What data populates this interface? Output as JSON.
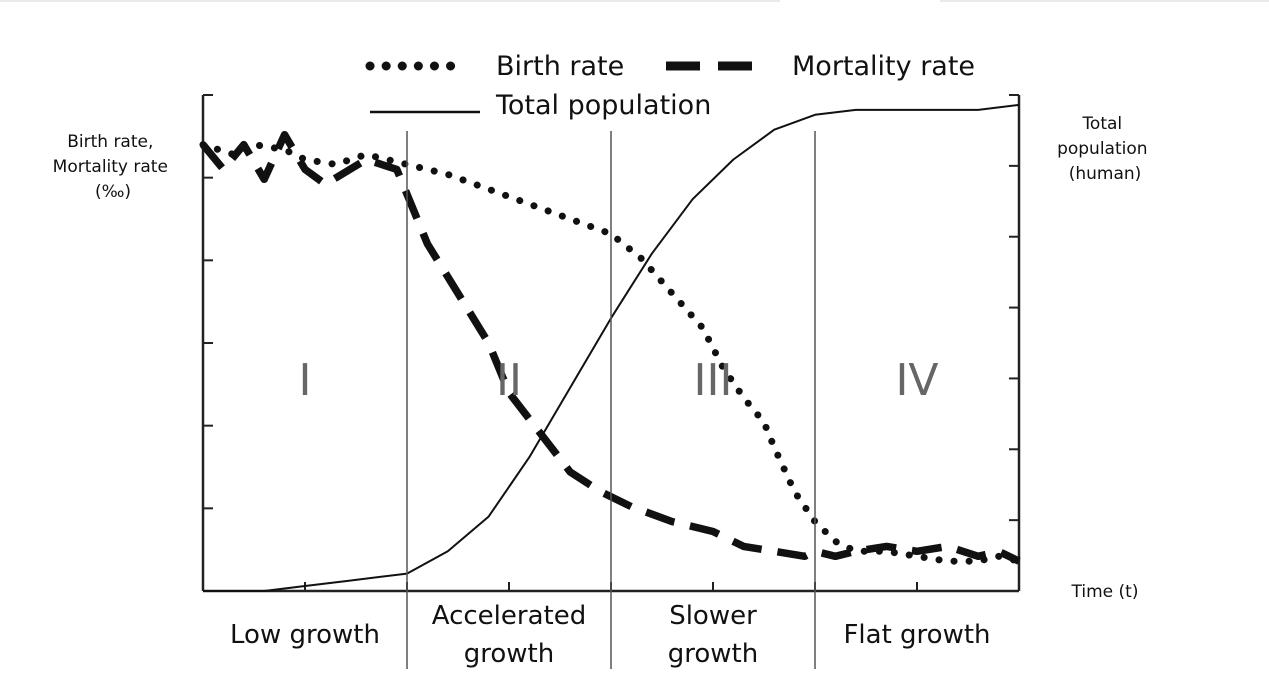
{
  "legend": {
    "birth": "Birth rate",
    "mortality": "Mortality rate",
    "total": "Total population"
  },
  "axes": {
    "left_label": [
      "Birth rate,",
      "Mortality rate",
      "(‰)"
    ],
    "right_label": [
      "Total",
      "population",
      "(human)"
    ],
    "x_label": "Time (t)"
  },
  "stages": [
    {
      "numeral": "I",
      "name": [
        "Low growth"
      ]
    },
    {
      "numeral": "II",
      "name": [
        "Accelerated",
        "growth"
      ]
    },
    {
      "numeral": "III",
      "name": [
        "Slower",
        "growth"
      ]
    },
    {
      "numeral": "IV",
      "name": [
        "Flat growth"
      ]
    }
  ],
  "chart_data": {
    "type": "line",
    "title": "",
    "xlabel": "Time (t)",
    "ylabel_left": "Birth rate, Mortality rate (‰)",
    "ylabel_right": "Total population (human)",
    "xlim": [
      0,
      4
    ],
    "ylim": [
      0,
      1
    ],
    "stage_boundaries": [
      1,
      2,
      3
    ],
    "grid": false,
    "legend_position": "top",
    "series": [
      {
        "name": "Birth rate",
        "style": "dotted",
        "axis": "left",
        "x": [
          0.0,
          0.15,
          0.25,
          0.4,
          0.5,
          0.65,
          0.8,
          1.0,
          1.2,
          1.4,
          1.6,
          1.8,
          2.0,
          2.15,
          2.3,
          2.45,
          2.55,
          2.65,
          2.75,
          2.8,
          2.9,
          3.0,
          3.1,
          3.2,
          3.35,
          3.5,
          3.65,
          3.8,
          3.9,
          4.0
        ],
        "y": [
          0.9,
          0.88,
          0.9,
          0.89,
          0.87,
          0.86,
          0.88,
          0.86,
          0.84,
          0.81,
          0.78,
          0.75,
          0.72,
          0.67,
          0.6,
          0.53,
          0.45,
          0.39,
          0.34,
          0.29,
          0.2,
          0.14,
          0.1,
          0.08,
          0.08,
          0.07,
          0.06,
          0.06,
          0.07,
          0.06
        ]
      },
      {
        "name": "Mortality rate",
        "style": "dashed",
        "axis": "left",
        "x": [
          0.0,
          0.1,
          0.2,
          0.3,
          0.4,
          0.5,
          0.6,
          0.8,
          0.95,
          1.0,
          1.1,
          1.25,
          1.4,
          1.5,
          1.65,
          1.8,
          1.95,
          2.1,
          2.3,
          2.5,
          2.65,
          2.8,
          2.95,
          3.0,
          3.1,
          3.2,
          3.35,
          3.5,
          3.65,
          3.8,
          3.9,
          4.0
        ],
        "y": [
          0.9,
          0.85,
          0.9,
          0.83,
          0.92,
          0.85,
          0.82,
          0.87,
          0.85,
          0.8,
          0.7,
          0.6,
          0.5,
          0.4,
          0.32,
          0.24,
          0.2,
          0.17,
          0.14,
          0.12,
          0.09,
          0.08,
          0.07,
          0.08,
          0.07,
          0.08,
          0.09,
          0.08,
          0.09,
          0.07,
          0.08,
          0.06
        ]
      },
      {
        "name": "Total population",
        "style": "solid",
        "axis": "right",
        "x": [
          0.0,
          0.3,
          0.5,
          0.7,
          1.0,
          1.2,
          1.4,
          1.6,
          1.8,
          2.0,
          2.2,
          2.4,
          2.6,
          2.8,
          3.0,
          3.2,
          3.4,
          3.6,
          3.8,
          4.0
        ],
        "y": [
          0.0,
          0.0,
          0.01,
          0.02,
          0.035,
          0.08,
          0.15,
          0.27,
          0.41,
          0.55,
          0.68,
          0.79,
          0.87,
          0.93,
          0.96,
          0.97,
          0.97,
          0.97,
          0.97,
          0.98
        ]
      }
    ]
  }
}
